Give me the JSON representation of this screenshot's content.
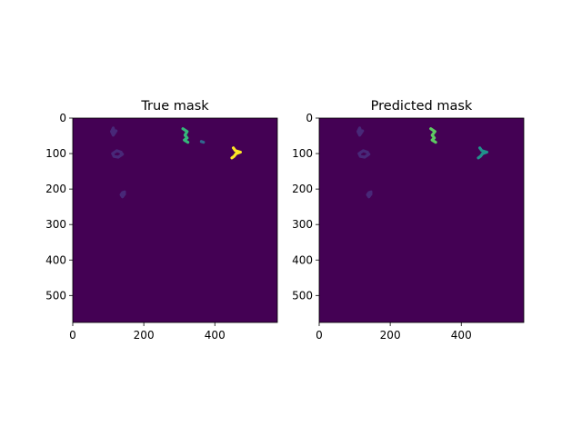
{
  "chart_data": [
    {
      "type": "heatmap",
      "title": "True mask",
      "xlabel": "",
      "ylabel": "",
      "xlim": [
        0,
        576
      ],
      "ylim": [
        576,
        0
      ],
      "xticks": [
        "0",
        "200",
        "400"
      ],
      "yticks": [
        "0",
        "100",
        "200",
        "300",
        "400",
        "500"
      ],
      "background_color": "#440154",
      "blobs": [
        {
          "x": [
            118,
            114,
            109,
            114,
            122
          ],
          "y": [
            40,
            28,
            38,
            48,
            36
          ],
          "color": "#482878"
        },
        {
          "x": [
            136,
            124,
            112,
            116,
            128,
            140,
            134
          ],
          "y": [
            96,
            92,
            100,
            108,
            110,
            102,
            96
          ],
          "color": "#482878"
        },
        {
          "x": [
            146,
            140,
            136,
            140,
            146
          ],
          "y": [
            208,
            210,
            216,
            222,
            214
          ],
          "color": "#482878"
        },
        {
          "x": [
            310,
            322,
            316,
            322,
            314,
            324
          ],
          "y": [
            30,
            38,
            48,
            56,
            62,
            68
          ],
          "color": "#35b779"
        },
        {
          "x": [
            362,
            368
          ],
          "y": [
            66,
            68
          ],
          "color": "#31688e"
        },
        {
          "x": [
            452,
            458,
            472,
            460,
            454,
            448
          ],
          "y": [
            84,
            92,
            96,
            100,
            108,
            112
          ],
          "color": "#fde725"
        }
      ]
    },
    {
      "type": "heatmap",
      "title": "Predicted mask",
      "xlabel": "",
      "ylabel": "",
      "xlim": [
        0,
        576
      ],
      "ylim": [
        576,
        0
      ],
      "xticks": [
        "0",
        "200",
        "400"
      ],
      "yticks": [
        "0",
        "100",
        "200",
        "300",
        "400",
        "500"
      ],
      "background_color": "#440154",
      "blobs": [
        {
          "x": [
            118,
            114,
            109,
            114,
            122
          ],
          "y": [
            40,
            28,
            38,
            48,
            36
          ],
          "color": "#482878"
        },
        {
          "x": [
            136,
            124,
            112,
            116,
            128,
            140,
            134
          ],
          "y": [
            96,
            92,
            100,
            108,
            110,
            102,
            96
          ],
          "color": "#482878"
        },
        {
          "x": [
            146,
            140,
            136,
            140,
            146
          ],
          "y": [
            208,
            210,
            216,
            222,
            214
          ],
          "color": "#482878"
        },
        {
          "x": [
            314,
            326,
            318,
            324,
            318,
            328
          ],
          "y": [
            30,
            38,
            48,
            56,
            62,
            68
          ],
          "color": "#5ec962"
        },
        {
          "x": [
            452,
            458,
            472,
            460,
            454,
            448
          ],
          "y": [
            84,
            92,
            96,
            100,
            108,
            112
          ],
          "color": "#21918c"
        }
      ]
    }
  ]
}
